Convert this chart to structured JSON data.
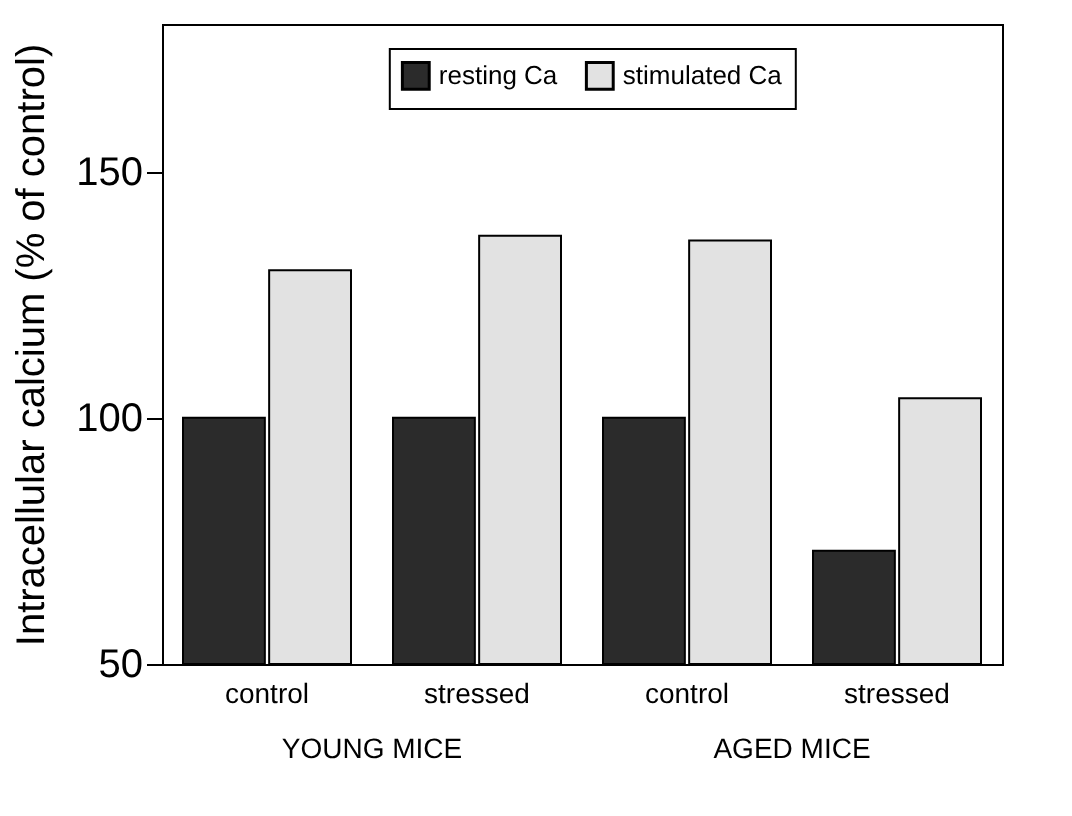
{
  "chart_data": {
    "type": "bar",
    "categories": [
      "control",
      "stressed",
      "control",
      "stressed"
    ],
    "series": [
      {
        "name": "resting Ca",
        "color": "#2b2b2b",
        "values": [
          100,
          100,
          100,
          73
        ]
      },
      {
        "name": "stimulated Ca",
        "color": "#e2e2e2",
        "values": [
          130,
          137,
          136,
          104
        ]
      }
    ],
    "ylabel": "Intracellular calcium (% of control)",
    "ylim": [
      50,
      180
    ],
    "yticks": [
      50,
      100,
      150
    ],
    "annotations": [
      "YOUNG MICE",
      "AGED MICE"
    ],
    "legend": "top",
    "grid": false
  }
}
